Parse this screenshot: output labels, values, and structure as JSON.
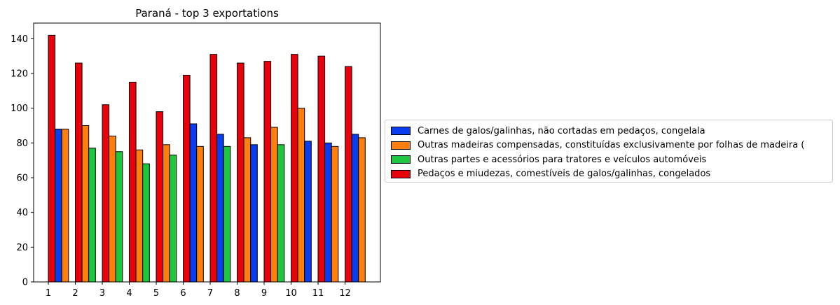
{
  "chart_data": {
    "type": "bar",
    "title": "Paraná - top 3 exportations",
    "categories": [
      "1",
      "2",
      "3",
      "4",
      "5",
      "6",
      "7",
      "8",
      "9",
      "10",
      "11",
      "12"
    ],
    "ylim": [
      0,
      149
    ],
    "yticks": [
      0,
      20,
      40,
      60,
      80,
      100,
      120,
      140
    ],
    "grid": false,
    "legend_position": "right",
    "series": [
      {
        "name": "Carnes de galos/galinhas, não cortadas em pedaços, congelala",
        "color": "#0a3cf0",
        "values": [
          88,
          null,
          null,
          null,
          null,
          91,
          85,
          79,
          null,
          81,
          80,
          85
        ]
      },
      {
        "name": "Outras madeiras compensadas, constituídas exclusivamente por folhas de madeira (",
        "color": "#ff7f0e",
        "values": [
          88,
          90,
          84,
          76,
          79,
          78,
          null,
          83,
          89,
          100,
          78,
          83
        ]
      },
      {
        "name": "Outras partes e acessórios para tratores e veículos automóveis",
        "color": "#1ec83c",
        "values": [
          null,
          77,
          75,
          68,
          73,
          null,
          78,
          null,
          79,
          null,
          null,
          null
        ]
      },
      {
        "name": "Pedaços e miudezas, comestíveis de galos/galinhas, congelados",
        "color": "#e8000b",
        "values": [
          142,
          126,
          102,
          115,
          98,
          119,
          131,
          126,
          127,
          131,
          130,
          124
        ]
      }
    ],
    "bars": [
      {
        "month": "1",
        "series": "Pedaços e miudezas, comestíveis de galos/galinhas, congelados",
        "value": 142
      },
      {
        "month": "1",
        "series": "Carnes de galos/galinhas, não cortadas em pedaços, congelala",
        "value": 88
      },
      {
        "month": "1",
        "series": "Outras madeiras compensadas, constituídas exclusivamente por folhas de madeira (",
        "value": 88
      },
      {
        "month": "2",
        "series": "Pedaços e miudezas, comestíveis de galos/galinhas, congelados",
        "value": 126
      },
      {
        "month": "2",
        "series": "Outras madeiras compensadas, constituídas exclusivamente por folhas de madeira (",
        "value": 90
      },
      {
        "month": "2",
        "series": "Outras partes e acessórios para tratores e veículos automóveis",
        "value": 77
      },
      {
        "month": "3",
        "series": "Pedaços e miudezas, comestíveis de galos/galinhas, congelados",
        "value": 102
      },
      {
        "month": "3",
        "series": "Outras madeiras compensadas, constituídas exclusivamente por folhas de madeira (",
        "value": 84
      },
      {
        "month": "3",
        "series": "Outras partes e acessórios para tratores e veículos automóveis",
        "value": 75
      },
      {
        "month": "4",
        "series": "Pedaços e miudezas, comestíveis de galos/galinhas, congelados",
        "value": 115
      },
      {
        "month": "4",
        "series": "Outras madeiras compensadas, constituídas exclusivamente por folhas de madeira (",
        "value": 76
      },
      {
        "month": "4",
        "series": "Outras partes e acessórios para tratores e veículos automóveis",
        "value": 68
      },
      {
        "month": "5",
        "series": "Pedaços e miudezas, comestíveis de galos/galinhas, congelados",
        "value": 98
      },
      {
        "month": "5",
        "series": "Outras madeiras compensadas, constituídas exclusivamente por folhas de madeira (",
        "value": 79
      },
      {
        "month": "5",
        "series": "Outras partes e acessórios para tratores e veículos automóveis",
        "value": 73
      },
      {
        "month": "6",
        "series": "Pedaços e miudezas, comestíveis de galos/galinhas, congelados",
        "value": 119
      },
      {
        "month": "6",
        "series": "Carnes de galos/galinhas, não cortadas em pedaços, congelala",
        "value": 91
      },
      {
        "month": "6",
        "series": "Outras madeiras compensadas, constituídas exclusivamente por folhas de madeira (",
        "value": 78
      },
      {
        "month": "7",
        "series": "Pedaços e miudezas, comestíveis de galos/galinhas, congelados",
        "value": 131
      },
      {
        "month": "7",
        "series": "Carnes de galos/galinhas, não cortadas em pedaços, congelala",
        "value": 85
      },
      {
        "month": "7",
        "series": "Outras partes e acessórios para tratores e veículos automóveis",
        "value": 78
      },
      {
        "month": "8",
        "series": "Pedaços e miudezas, comestíveis de galos/galinhas, congelados",
        "value": 126
      },
      {
        "month": "8",
        "series": "Outras madeiras compensadas, constituídas exclusivamente por folhas de madeira (",
        "value": 83
      },
      {
        "month": "8",
        "series": "Carnes de galos/galinhas, não cortadas em pedaços, congelala",
        "value": 79
      },
      {
        "month": "9",
        "series": "Pedaços e miudezas, comestíveis de galos/galinhas, congelados",
        "value": 127
      },
      {
        "month": "9",
        "series": "Outras madeiras compensadas, constituídas exclusivamente por folhas de madeira (",
        "value": 89
      },
      {
        "month": "9",
        "series": "Outras partes e acessórios para tratores e veículos automóveis",
        "value": 79
      },
      {
        "month": "10",
        "series": "Pedaços e miudezas, comestíveis de galos/galinhas, congelados",
        "value": 131
      },
      {
        "month": "10",
        "series": "Outras madeiras compensadas, constituídas exclusivamente por folhas de madeira (",
        "value": 100
      },
      {
        "month": "10",
        "series": "Carnes de galos/galinhas, não cortadas em pedaços, congelala",
        "value": 81
      },
      {
        "month": "11",
        "series": "Pedaços e miudezas, comestíveis de galos/galinhas, congelados",
        "value": 130
      },
      {
        "month": "11",
        "series": "Carnes de galos/galinhas, não cortadas em pedaços, congelala",
        "value": 80
      },
      {
        "month": "11",
        "series": "Outras madeiras compensadas, constituídas exclusivamente por folhas de madeira (",
        "value": 78
      },
      {
        "month": "12",
        "series": "Pedaços e miudezas, comestíveis de galos/galinhas, congelados",
        "value": 124
      },
      {
        "month": "12",
        "series": "Carnes de galos/galinhas, não cortadas em pedaços, congelala",
        "value": 85
      },
      {
        "month": "12",
        "series": "Outras madeiras compensadas, constituídas exclusivamente por folhas de madeira (",
        "value": 83
      }
    ]
  }
}
